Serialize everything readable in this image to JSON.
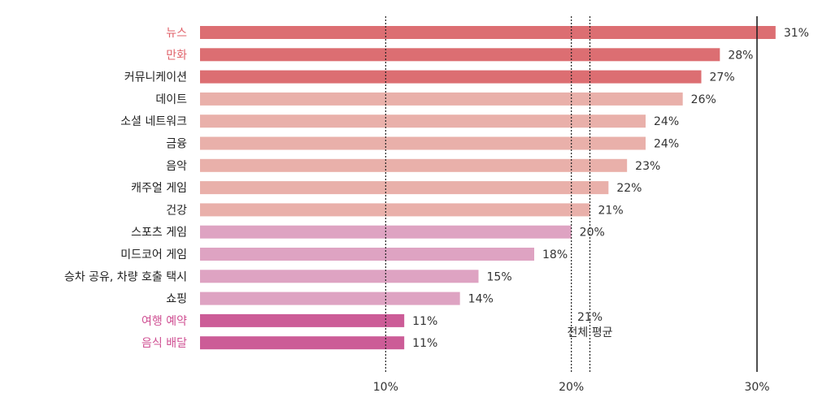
{
  "chart_data": {
    "type": "bar",
    "orientation": "horizontal",
    "title": "",
    "xlabel": "",
    "ylabel": "",
    "categories": [
      "뉴스",
      "만화",
      "커뮤니케이션",
      "데이트",
      "소셜 네트워크",
      "금융",
      "음악",
      "캐주얼 게임",
      "건강",
      "스포츠 게임",
      "미드코어 게임",
      "승차 공유, 차량 호출  택시",
      "쇼핑",
      "여행 예약",
      "음식 배달"
    ],
    "values": [
      31,
      28,
      27,
      26,
      24,
      24,
      23,
      22,
      21,
      20,
      18,
      15,
      14,
      11,
      11
    ],
    "value_labels": [
      "31%",
      "28%",
      "27%",
      "26%",
      "24%",
      "24%",
      "23%",
      "22%",
      "21%",
      "20%",
      "18%",
      "15%",
      "14%",
      "11%",
      "11%"
    ],
    "bar_colors": [
      "#dc6e72",
      "#dc6e72",
      "#dc6e72",
      "#e9b0aa",
      "#e9b0aa",
      "#e9b0aa",
      "#e9b0aa",
      "#e9b0aa",
      "#e9b0aa",
      "#dea3c2",
      "#dea3c2",
      "#dea3c2",
      "#dea3c2",
      "#cc5c97",
      "#cc5c97"
    ],
    "label_colors": [
      "#e0626a",
      "#e0626a",
      "#222222",
      "#222222",
      "#222222",
      "#222222",
      "#222222",
      "#222222",
      "#222222",
      "#222222",
      "#222222",
      "#222222",
      "#222222",
      "#cf4f92",
      "#cf4f92"
    ],
    "xlim": [
      0,
      31
    ],
    "x_ticks": [
      10,
      20,
      30
    ],
    "x_tick_labels": [
      "10%",
      "20%",
      "30%"
    ],
    "reference_lines": [
      {
        "value": 10,
        "style": "dotted"
      },
      {
        "value": 20,
        "style": "dotted"
      },
      {
        "value": 21,
        "style": "dotted",
        "label_value": "21%",
        "label_text": "전체 평균"
      },
      {
        "value": 30,
        "style": "solid"
      }
    ],
    "grid": false,
    "legend": "none"
  }
}
